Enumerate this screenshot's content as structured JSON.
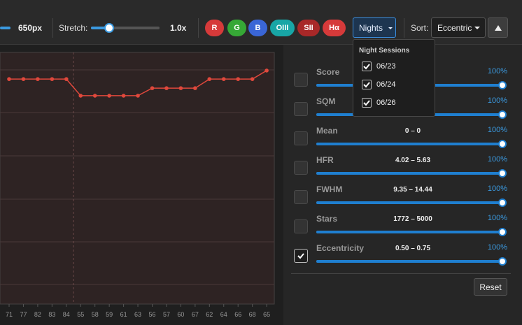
{
  "toolbar": {
    "size_label": "650px",
    "stretch_label": "Stretch:",
    "stretch_value": "1.0x",
    "filters": [
      "R",
      "G",
      "B",
      "OIII",
      "SII",
      "Hα"
    ],
    "nights_button": "Nights",
    "sort_label": "Sort:",
    "sort_value": "Eccentric"
  },
  "nights_menu": {
    "title": "Night Sessions",
    "items": [
      {
        "label": "06/23",
        "checked": true
      },
      {
        "label": "06/24",
        "checked": true
      },
      {
        "label": "06/26",
        "checked": true
      }
    ]
  },
  "chart": {
    "type": "line",
    "categories": [
      "71",
      "77",
      "82",
      "83",
      "84",
      "55",
      "58",
      "59",
      "61",
      "63",
      "56",
      "57",
      "60",
      "67",
      "62",
      "64",
      "66",
      "68",
      "65"
    ],
    "values": [
      89.4,
      89.4,
      89.4,
      89.4,
      89.4,
      82.8,
      82.8,
      82.8,
      82.8,
      82.8,
      85.8,
      85.8,
      85.8,
      85.8,
      89.4,
      89.4,
      89.4,
      89.4,
      92.8
    ],
    "color": "#e0483c"
  },
  "filters_panel": {
    "rows": [
      {
        "label": "Score",
        "checked": false,
        "value": 100,
        "value_label": "100%"
      },
      {
        "label": "SQM",
        "checked": false,
        "value": 100,
        "value_label": "100%"
      },
      {
        "label": "Mean",
        "range": "0 – 0",
        "checked": false,
        "value": 100,
        "value_label": "100%"
      },
      {
        "label": "HFR",
        "range": "4.02 – 5.63",
        "checked": false,
        "value": 100,
        "value_label": "100%"
      },
      {
        "label": "FWHM",
        "range": "9.35 – 14.44",
        "checked": false,
        "value": 100,
        "value_label": "100%"
      },
      {
        "label": "Stars",
        "range": "1772 – 5000",
        "checked": false,
        "value": 100,
        "value_label": "100%"
      },
      {
        "label": "Eccentricity",
        "range": "0.50 – 0.75",
        "checked": true,
        "value": 100,
        "value_label": "100%"
      }
    ],
    "reset": "Reset"
  }
}
